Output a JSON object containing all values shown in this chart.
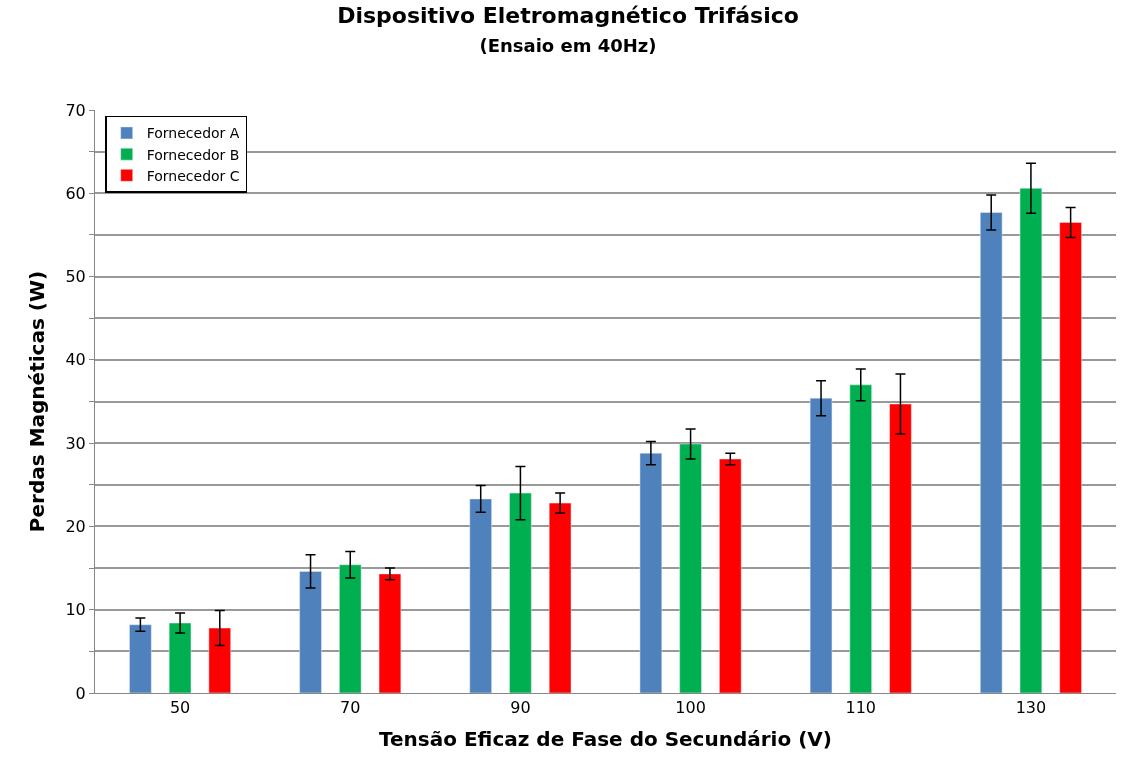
{
  "chart_data": {
    "type": "bar",
    "title": "Dispositivo Eletromagnético Trifásico",
    "subtitle": "(Ensaio em 40Hz)",
    "xlabel": "Tensão Eficaz de Fase do Secundário (V)",
    "ylabel": "Perdas Magnéticas (W)",
    "categories": [
      "50",
      "70",
      "90",
      "100",
      "110",
      "130"
    ],
    "series": [
      {
        "name": "Fornecedor A",
        "color": "#4f81bd",
        "values": [
          8.2,
          14.6,
          23.3,
          28.8,
          35.4,
          57.7
        ],
        "errors": [
          0.8,
          2.0,
          1.6,
          1.4,
          2.1,
          2.1
        ]
      },
      {
        "name": "Fornecedor B",
        "color": "#00b050",
        "values": [
          8.4,
          15.4,
          24.0,
          29.9,
          37.0,
          60.6
        ],
        "errors": [
          1.2,
          1.6,
          3.2,
          1.8,
          1.9,
          3.0
        ]
      },
      {
        "name": "Fornecedor C",
        "color": "#ff0000",
        "values": [
          7.8,
          14.3,
          22.8,
          28.1,
          34.7,
          56.5
        ],
        "errors": [
          2.1,
          0.7,
          1.2,
          0.7,
          3.6,
          1.8
        ]
      }
    ],
    "ylim": [
      0,
      70
    ],
    "yticks": [
      0,
      {
        "value": 5,
        "label": null
      },
      10,
      {
        "value": 15,
        "label": null
      },
      20,
      {
        "value": 25,
        "label": null
      },
      30,
      {
        "value": 35,
        "label": null
      },
      40,
      {
        "value": 45,
        "label": null
      },
      50,
      {
        "value": 55,
        "label": null
      },
      60,
      {
        "value": 65,
        "label": null
      },
      70
    ],
    "grid": "y",
    "legend": "top left"
  }
}
